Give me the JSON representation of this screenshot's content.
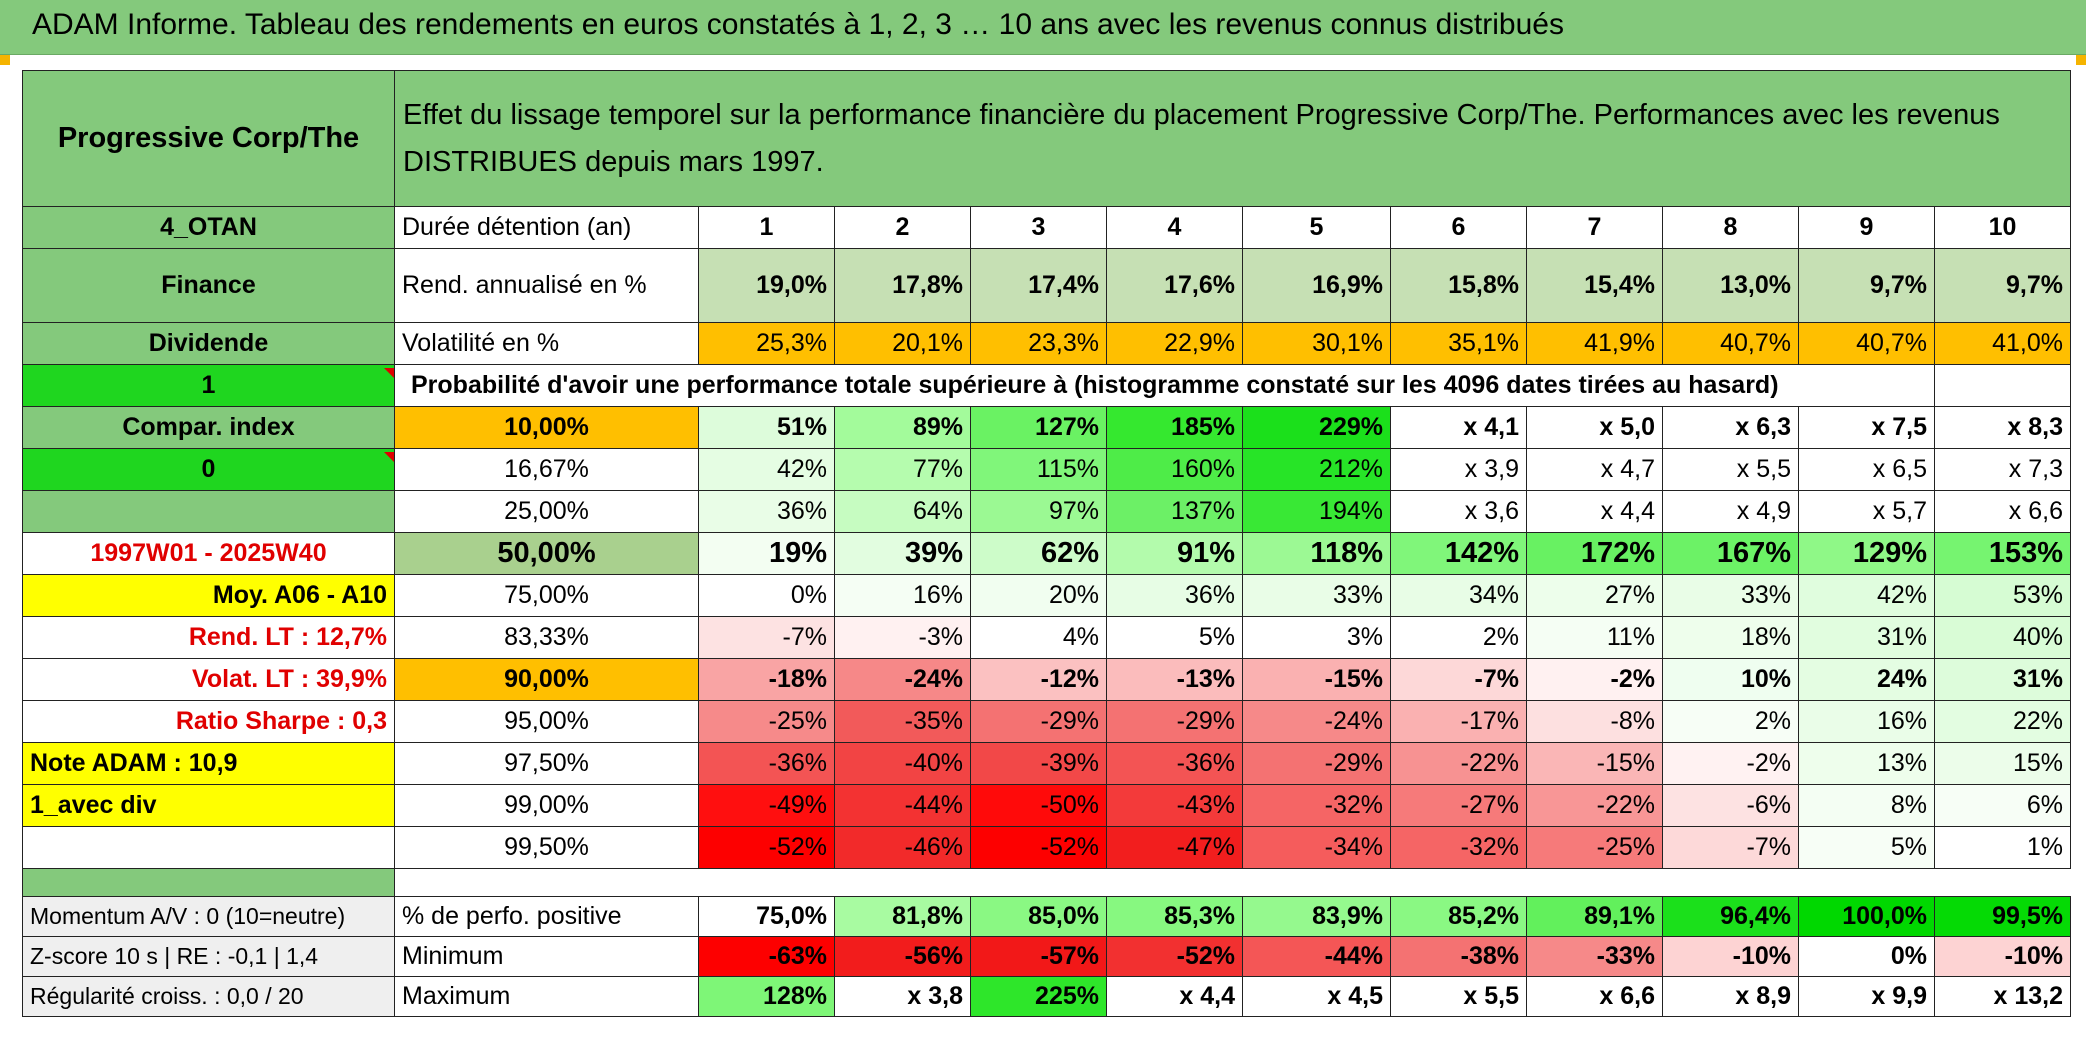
{
  "title": "ADAM Informe. Tableau des rendements en euros constatés à 1, 2, 3 … 10 ans avec les revenus connus distribués",
  "header": {
    "fund": "Progressive Corp/The",
    "description": "Effet du lissage temporel sur la performance financière du placement Progressive Corp/The. Performances avec les revenus DISTRIBUES depuis mars 1997."
  },
  "side": {
    "s0": "4_OTAN",
    "s1": "Finance",
    "s2": "Dividende",
    "s3": "1",
    "s4": "Compar. index",
    "s5": "0",
    "s6": "",
    "s7": "1997W01 - 2025W40",
    "s8": "Moy. A06 - A10",
    "s9": "Rend. LT :    12,7%",
    "s10": "Volat. LT :   39,9%",
    "s11": "Ratio Sharpe :    0,3",
    "s12": "Note ADAM : 10,9",
    "s13": "1_avec div",
    "s14": "",
    "m0": "Momentum A/V : 0 (10=neutre)",
    "m1": "Z-score 10 s | RE : -0,1 | 1,4",
    "m2": "Régularité croiss. : 0,0 / 20"
  },
  "rows": {
    "duree": {
      "label": "Durée détention (an)",
      "values": [
        "1",
        "2",
        "3",
        "4",
        "5",
        "6",
        "7",
        "8",
        "9",
        "10"
      ]
    },
    "rend": {
      "label": "Rend. annualisé en %",
      "values": [
        "19,0%",
        "17,8%",
        "17,4%",
        "17,6%",
        "16,9%",
        "15,8%",
        "15,4%",
        "13,0%",
        "9,7%",
        "9,7%"
      ]
    },
    "vol": {
      "label": "Volatilité en %",
      "values": [
        "25,3%",
        "20,1%",
        "23,3%",
        "22,9%",
        "30,1%",
        "35,1%",
        "41,9%",
        "40,7%",
        "40,7%",
        "41,0%"
      ]
    },
    "proba_title": "Probabilité d'avoir une performance totale supérieure à (histogramme constaté sur les 4096 dates tirées au hasard)",
    "prob": [
      {
        "label": "10,00%",
        "values": [
          "51%",
          "89%",
          "127%",
          "185%",
          "229%",
          "x 4,1",
          "x 5,0",
          "x 6,3",
          "x 7,5",
          "x 8,3"
        ]
      },
      {
        "label": "16,67%",
        "values": [
          "42%",
          "77%",
          "115%",
          "160%",
          "212%",
          "x 3,9",
          "x 4,7",
          "x 5,5",
          "x 6,5",
          "x 7,3"
        ]
      },
      {
        "label": "25,00%",
        "values": [
          "36%",
          "64%",
          "97%",
          "137%",
          "194%",
          "x 3,6",
          "x 4,4",
          "x 4,9",
          "x 5,7",
          "x 6,6"
        ]
      },
      {
        "label": "50,00%",
        "values": [
          "19%",
          "39%",
          "62%",
          "91%",
          "118%",
          "142%",
          "172%",
          "167%",
          "129%",
          "153%"
        ]
      },
      {
        "label": "75,00%",
        "values": [
          "0%",
          "16%",
          "20%",
          "36%",
          "33%",
          "34%",
          "27%",
          "33%",
          "42%",
          "53%"
        ]
      },
      {
        "label": "83,33%",
        "values": [
          "-7%",
          "-3%",
          "4%",
          "5%",
          "3%",
          "2%",
          "11%",
          "18%",
          "31%",
          "40%"
        ]
      },
      {
        "label": "90,00%",
        "values": [
          "-18%",
          "-24%",
          "-12%",
          "-13%",
          "-15%",
          "-7%",
          "-2%",
          "10%",
          "24%",
          "31%"
        ]
      },
      {
        "label": "95,00%",
        "values": [
          "-25%",
          "-35%",
          "-29%",
          "-29%",
          "-24%",
          "-17%",
          "-8%",
          "2%",
          "16%",
          "22%"
        ]
      },
      {
        "label": "97,50%",
        "values": [
          "-36%",
          "-40%",
          "-39%",
          "-36%",
          "-29%",
          "-22%",
          "-15%",
          "-2%",
          "13%",
          "15%"
        ]
      },
      {
        "label": "99,00%",
        "values": [
          "-49%",
          "-44%",
          "-50%",
          "-43%",
          "-32%",
          "-27%",
          "-22%",
          "-6%",
          "8%",
          "6%"
        ]
      },
      {
        "label": "99,50%",
        "values": [
          "-52%",
          "-46%",
          "-52%",
          "-47%",
          "-34%",
          "-32%",
          "-25%",
          "-7%",
          "5%",
          "1%"
        ]
      }
    ],
    "pos": {
      "label": "% de perfo. positive",
      "values": [
        "75,0%",
        "81,8%",
        "85,0%",
        "85,3%",
        "83,9%",
        "85,2%",
        "89,1%",
        "96,4%",
        "100,0%",
        "99,5%"
      ]
    },
    "min": {
      "label": "Minimum",
      "values": [
        "-63%",
        "-56%",
        "-57%",
        "-52%",
        "-44%",
        "-38%",
        "-33%",
        "-10%",
        "0%",
        "-10%"
      ]
    },
    "max": {
      "label": "Maximum",
      "values": [
        "128%",
        "x 3,8",
        "225%",
        "x 4,4",
        "x 4,5",
        "x 5,5",
        "x 6,6",
        "x 8,9",
        "x 9,9",
        "x 13,2"
      ]
    }
  },
  "colors": {
    "header_green": "#84c97c",
    "bright_green": "#1fd61f",
    "yellow": "#ffff00",
    "orange": "#ffbf00",
    "rend_green": "#c6e0b4",
    "dark_red": "#ff0000",
    "alert_red": "#e00000"
  }
}
